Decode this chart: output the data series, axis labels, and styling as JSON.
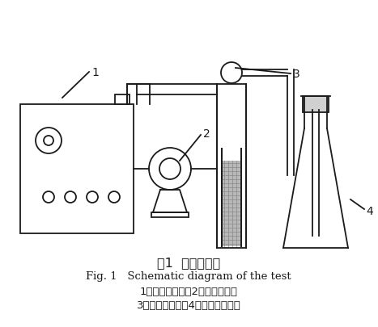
{
  "bg_color": "#ffffff",
  "line_color": "#1a1a1a",
  "fill_light": "#c8c8c8",
  "title_cn": "图1  实验流程图",
  "title_en": "Fig. 1   Schematic diagram of the test",
  "caption_line1": "1，臭氧发生器；2，微型气泵；",
  "caption_line2": "3，臭氧反应器；4，尾气收集装置",
  "label1": "1",
  "label2": "2",
  "label3": "3",
  "label4": "4"
}
